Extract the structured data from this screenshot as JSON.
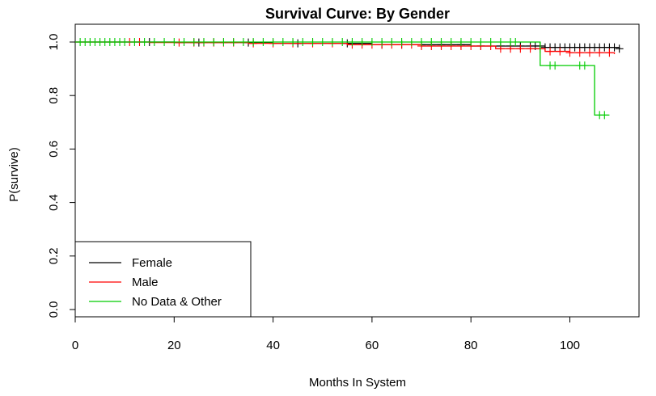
{
  "chart_data": {
    "type": "line",
    "title": "Survival Curve: By Gender",
    "xlabel": "Months In System",
    "ylabel": "P(survive)",
    "xlim": [
      0,
      112
    ],
    "ylim": [
      0,
      1.0
    ],
    "x_ticks": [
      0,
      20,
      40,
      60,
      80,
      100
    ],
    "y_ticks": [
      0.0,
      0.2,
      0.4,
      0.6,
      0.8,
      1.0
    ],
    "x_tick_labels": [
      "0",
      "20",
      "40",
      "60",
      "80",
      "100"
    ],
    "y_tick_labels": [
      "0.0",
      "0.2",
      "0.4",
      "0.6",
      "0.8",
      "1.0"
    ],
    "grid": false,
    "legend_position": "bottom-left",
    "series": [
      {
        "name": "Female",
        "color": "#000000",
        "steps": [
          [
            0,
            1.0
          ],
          [
            20,
            0.998
          ],
          [
            40,
            0.995
          ],
          [
            60,
            0.99
          ],
          [
            80,
            0.985
          ],
          [
            95,
            0.98
          ],
          [
            110,
            0.975
          ]
        ],
        "censor_x": [
          15,
          25,
          35,
          45,
          55,
          62,
          66,
          70,
          74,
          78,
          82,
          86,
          88,
          90,
          92,
          93,
          94,
          95,
          96,
          97,
          98,
          99,
          100,
          101,
          102,
          103,
          104,
          105,
          106,
          107,
          108,
          109,
          110
        ]
      },
      {
        "name": "Male",
        "color": "#ff0000",
        "steps": [
          [
            0,
            1.0
          ],
          [
            15,
            0.998
          ],
          [
            35,
            0.995
          ],
          [
            55,
            0.99
          ],
          [
            70,
            0.985
          ],
          [
            85,
            0.975
          ],
          [
            95,
            0.965
          ],
          [
            100,
            0.96
          ],
          [
            109,
            0.955
          ]
        ],
        "censor_x": [
          11,
          13,
          21,
          24,
          26,
          28,
          30,
          32,
          36,
          40,
          44,
          48,
          52,
          56,
          58,
          60,
          62,
          64,
          66,
          68,
          70,
          72,
          74,
          76,
          78,
          80,
          82,
          84,
          86,
          88,
          90,
          92,
          94,
          96,
          98,
          100,
          102,
          104,
          106,
          108
        ]
      },
      {
        "name": "No Data & Other",
        "color": "#00cc00",
        "steps": [
          [
            0,
            1.0
          ],
          [
            94,
            0.912
          ],
          [
            105,
            0.727
          ],
          [
            108,
            0.727
          ]
        ],
        "censor_x": [
          1,
          2,
          3,
          4,
          5,
          6,
          7,
          8,
          9,
          10,
          12,
          14,
          16,
          18,
          20,
          22,
          24,
          26,
          28,
          30,
          32,
          34,
          36,
          38,
          40,
          42,
          44,
          46,
          48,
          50,
          52,
          54,
          56,
          58,
          60,
          62,
          64,
          66,
          68,
          70,
          72,
          74,
          76,
          78,
          80,
          82,
          84,
          86,
          88,
          89,
          96,
          97,
          102,
          103,
          106,
          107
        ]
      }
    ]
  }
}
